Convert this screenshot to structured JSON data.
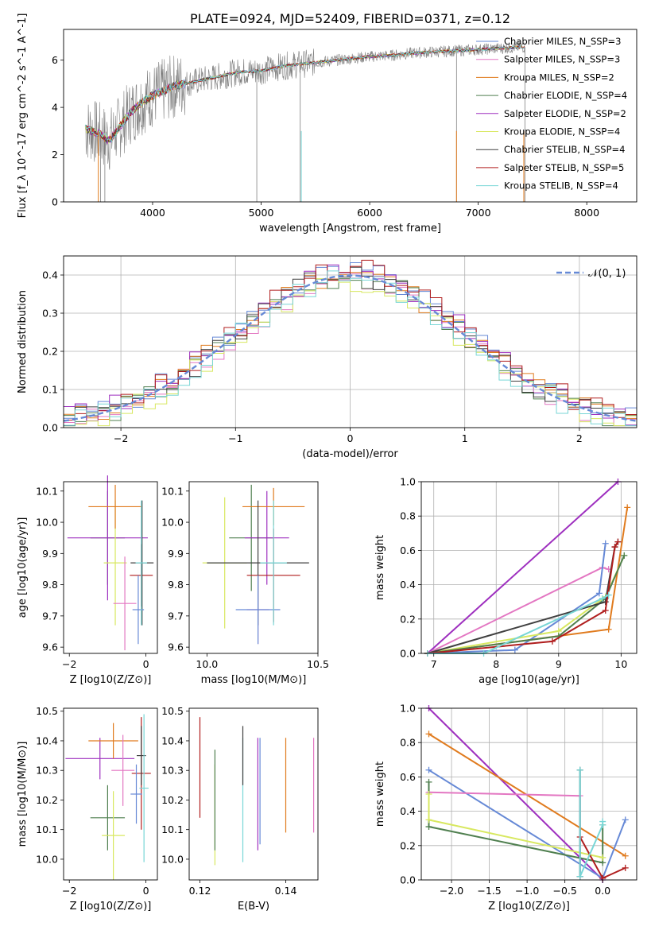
{
  "chart_data": [
    {
      "id": "spectrum",
      "type": "line",
      "title": "PLATE=0924, MJD=52409, FIBERID=0371, z=0.12",
      "xlabel": "wavelength [Angstrom, rest frame]",
      "ylabel": "Flux [f_λ 10^-17 erg cm^-2 s^-1 A^-1]",
      "xlim": [
        3180,
        8460
      ],
      "ylim": [
        0,
        7.3
      ],
      "xticks": [
        4000,
        5000,
        6000,
        7000,
        8000
      ],
      "yticks": [
        0,
        2,
        4,
        6
      ],
      "grid": false,
      "legend_position": "top-right",
      "observed_color": "#808080",
      "continuum_points": {
        "x": [
          3380,
          3500,
          3600,
          3700,
          3800,
          3900,
          4000,
          4200,
          4400,
          4600,
          4800,
          5000,
          5200,
          5400,
          5600,
          5800,
          6000,
          6200,
          6400,
          6600,
          6800,
          7000,
          7200,
          7400
        ],
        "y": [
          3.1,
          2.9,
          2.6,
          3.2,
          3.8,
          4.2,
          4.5,
          4.9,
          5.1,
          5.3,
          5.5,
          5.55,
          5.75,
          5.85,
          5.95,
          6.05,
          6.15,
          6.2,
          6.3,
          6.35,
          6.4,
          6.45,
          6.5,
          6.55
        ]
      },
      "legend": [
        {
          "label": "Chabrier MILES, N_SSP=3",
          "color": "#6689d6"
        },
        {
          "label": "Salpeter MILES, N_SSP=3",
          "color": "#e377c2"
        },
        {
          "label": "Kroupa MILES, N_SSP=2",
          "color": "#e07b1e"
        },
        {
          "label": "Chabrier ELODIE, N_SSP=4",
          "color": "#4f7f4f"
        },
        {
          "label": "Salpeter ELODIE, N_SSP=2",
          "color": "#9e2fbf"
        },
        {
          "label": "Kroupa ELODIE, N_SSP=4",
          "color": "#d8e860"
        },
        {
          "label": "Chabrier STELIB, N_SSP=4",
          "color": "#404040"
        },
        {
          "label": "Salpeter STELIB, N_SSP=5",
          "color": "#b01e1e"
        },
        {
          "label": "Kroupa STELIB, N_SSP=4",
          "color": "#78d6d6"
        }
      ]
    },
    {
      "id": "residuals",
      "type": "histogram",
      "xlabel": "(data-model)/error",
      "ylabel": "Normed distribution",
      "xlim": [
        -2.5,
        2.5
      ],
      "ylim": [
        0,
        0.45
      ],
      "xticks": [
        -2,
        -1,
        0,
        1,
        2
      ],
      "yticks": [
        0.0,
        0.1,
        0.2,
        0.3,
        0.4
      ],
      "grid": true,
      "legend": [
        {
          "label": "𝒩(0, 1)",
          "color": "#6689d6",
          "style": "dashed"
        }
      ],
      "legend_position": "top-right",
      "bin_edges_start": -2.5,
      "bin_width": 0.1,
      "series": [
        {
          "name": "Chabrier MILES",
          "color": "#6689d6",
          "offset": 0.01
        },
        {
          "name": "Salpeter MILES",
          "color": "#e377c2",
          "offset": -0.008
        },
        {
          "name": "Kroupa MILES",
          "color": "#e07b1e",
          "offset": 0.006
        },
        {
          "name": "Chabrier ELODIE",
          "color": "#4f7f4f",
          "offset": -0.004
        },
        {
          "name": "Salpeter ELODIE",
          "color": "#9e2fbf",
          "offset": 0.012
        },
        {
          "name": "Kroupa ELODIE",
          "color": "#d8e860",
          "offset": -0.012
        },
        {
          "name": "Chabrier STELIB",
          "color": "#404040",
          "offset": 0.002
        },
        {
          "name": "Salpeter STELIB",
          "color": "#b01e1e",
          "offset": 0.015
        },
        {
          "name": "Kroupa STELIB",
          "color": "#78d6d6",
          "offset": -0.006
        }
      ]
    },
    {
      "id": "age-vs-Z",
      "type": "scatter",
      "xlabel": "Z [log10(Z/Z⊙)]",
      "ylabel": "age [log10(age/yr)]",
      "xlim": [
        -2.15,
        0.3
      ],
      "ylim": [
        9.58,
        10.13
      ],
      "xticks": [
        -2,
        0
      ],
      "yticks": [
        9.6,
        9.7,
        9.8,
        9.9,
        10.0,
        10.1
      ],
      "points": [
        {
          "x": -1.0,
          "y": 9.95,
          "xerr": 0.45,
          "yerr": 0.15,
          "color": "#4f7f4f"
        },
        {
          "x": -1.0,
          "y": 9.95,
          "xerr": 1.05,
          "yerr": 0.2,
          "color": "#9e2fbf"
        },
        {
          "x": -0.8,
          "y": 9.87,
          "xerr": 0.3,
          "yerr": 0.2,
          "color": "#d8e860"
        },
        {
          "x": -0.8,
          "y": 10.05,
          "xerr": 0.7,
          "yerr": 0.07,
          "color": "#e07b1e"
        },
        {
          "x": -0.55,
          "y": 9.74,
          "xerr": 0.3,
          "yerr": 0.15,
          "color": "#e377c2"
        },
        {
          "x": -0.12,
          "y": 9.83,
          "xerr": 0.3,
          "yerr": 0.1,
          "color": "#b01e1e"
        },
        {
          "x": -0.1,
          "y": 9.87,
          "xerr": 0.3,
          "yerr": 0.2,
          "color": "#404040"
        },
        {
          "x": -0.2,
          "y": 9.72,
          "xerr": 0.15,
          "yerr": 0.11,
          "color": "#6689d6"
        },
        {
          "x": -0.12,
          "y": 9.87,
          "xerr": 0.15,
          "yerr": 0.2,
          "color": "#78d6d6"
        }
      ]
    },
    {
      "id": "age-vs-mass",
      "type": "scatter",
      "xlabel": "mass [log10(M/M⊙)]",
      "ylabel": "",
      "xlim": [
        9.92,
        10.5
      ],
      "ylim": [
        9.58,
        10.13
      ],
      "xticks": [
        10.0,
        10.5
      ],
      "yticks": [
        9.6,
        9.7,
        9.8,
        9.9,
        10.0,
        10.1
      ],
      "points": [
        {
          "x": 10.2,
          "y": 9.95,
          "xerr": 0.1,
          "yerr": 0.17,
          "color": "#4f7f4f"
        },
        {
          "x": 10.27,
          "y": 9.95,
          "xerr": 0.1,
          "yerr": 0.15,
          "color": "#9e2fbf"
        },
        {
          "x": 10.08,
          "y": 9.87,
          "xerr": 0.1,
          "yerr": 0.21,
          "color": "#d8e860"
        },
        {
          "x": 10.3,
          "y": 10.05,
          "xerr": 0.14,
          "yerr": 0.06,
          "color": "#e07b1e"
        },
        {
          "x": 10.23,
          "y": 9.72,
          "xerr": 0.05,
          "yerr": 0.11,
          "color": "#e377c2"
        },
        {
          "x": 10.3,
          "y": 9.83,
          "xerr": 0.12,
          "yerr": 0.15,
          "color": "#b01e1e"
        },
        {
          "x": 10.23,
          "y": 9.87,
          "xerr": 0.23,
          "yerr": 0.2,
          "color": "#404040"
        },
        {
          "x": 10.23,
          "y": 9.72,
          "xerr": 0.1,
          "yerr": 0.11,
          "color": "#6689d6"
        },
        {
          "x": 10.3,
          "y": 9.87,
          "xerr": 0.06,
          "yerr": 0.2,
          "color": "#78d6d6"
        }
      ]
    },
    {
      "id": "weight-vs-age",
      "type": "line",
      "xlabel": "age [log10(age/yr)]",
      "ylabel": "mass weight",
      "xlim": [
        6.8,
        10.25
      ],
      "ylim": [
        0,
        1
      ],
      "xticks": [
        7,
        8,
        9,
        10
      ],
      "yticks": [
        0.0,
        0.2,
        0.4,
        0.6,
        0.8,
        1.0
      ],
      "grid": true,
      "series": [
        {
          "color": "#9e2fbf",
          "x": [
            6.9,
            9.95
          ],
          "y": [
            0.0,
            1.0
          ]
        },
        {
          "color": "#e07b1e",
          "x": [
            6.9,
            9.8,
            10.1
          ],
          "y": [
            0.0,
            0.14,
            0.85
          ]
        },
        {
          "color": "#e377c2",
          "x": [
            6.9,
            9.7,
            9.8
          ],
          "y": [
            0.0,
            0.5,
            0.49
          ]
        },
        {
          "color": "#6689d6",
          "x": [
            6.9,
            8.3,
            9.65,
            9.75
          ],
          "y": [
            0.0,
            0.02,
            0.35,
            0.64
          ]
        },
        {
          "color": "#d8e860",
          "x": [
            6.9,
            9.0,
            9.75,
            10.05
          ],
          "y": [
            0.0,
            0.13,
            0.33,
            0.57
          ]
        },
        {
          "color": "#4f7f4f",
          "x": [
            6.9,
            9.0,
            9.75,
            10.05
          ],
          "y": [
            0.0,
            0.1,
            0.32,
            0.57
          ]
        },
        {
          "color": "#404040",
          "x": [
            6.9,
            9.75,
            9.9,
            9.95
          ],
          "y": [
            0.0,
            0.3,
            0.62,
            0.65
          ]
        },
        {
          "color": "#b01e1e",
          "x": [
            6.9,
            8.9,
            9.75,
            9.9,
            9.95
          ],
          "y": [
            0.0,
            0.07,
            0.25,
            0.62,
            0.65
          ]
        },
        {
          "color": "#78d6d6",
          "x": [
            6.9,
            7.8,
            9.7,
            9.8
          ],
          "y": [
            0.0,
            0.0,
            0.32,
            0.34
          ]
        }
      ]
    },
    {
      "id": "mass-vs-Z",
      "type": "scatter",
      "xlabel": "Z [log10(Z/Z⊙)]",
      "ylabel": "mass [log10(M/M⊙)]",
      "xlim": [
        -2.15,
        0.3
      ],
      "ylim": [
        9.93,
        10.51
      ],
      "xticks": [
        -2,
        0
      ],
      "yticks": [
        10.0,
        10.1,
        10.2,
        10.3,
        10.4,
        10.5
      ],
      "points": [
        {
          "x": -1.0,
          "y": 10.14,
          "xerr": 0.45,
          "yerr": 0.11,
          "color": "#4f7f4f"
        },
        {
          "x": -1.2,
          "y": 10.34,
          "xerr": 0.9,
          "yerr": 0.07,
          "color": "#9e2fbf"
        },
        {
          "x": -0.85,
          "y": 10.08,
          "xerr": 0.3,
          "yerr": 0.15,
          "color": "#d8e860"
        },
        {
          "x": -0.85,
          "y": 10.4,
          "xerr": 0.65,
          "yerr": 0.06,
          "color": "#e07b1e"
        },
        {
          "x": -0.6,
          "y": 10.3,
          "xerr": 0.3,
          "yerr": 0.12,
          "color": "#e377c2"
        },
        {
          "x": -0.12,
          "y": 10.29,
          "xerr": 0.25,
          "yerr": 0.19,
          "color": "#b01e1e"
        },
        {
          "x": -0.12,
          "y": 10.35,
          "xerr": 0.12,
          "yerr": 0.1,
          "color": "#404040"
        },
        {
          "x": -0.25,
          "y": 10.22,
          "xerr": 0.15,
          "yerr": 0.1,
          "color": "#6689d6"
        },
        {
          "x": -0.05,
          "y": 10.24,
          "xerr": 0.12,
          "yerr": 0.25,
          "color": "#78d6d6"
        }
      ]
    },
    {
      "id": "mass-vs-EBV",
      "type": "scatter",
      "xlabel": "E(B-V)",
      "ylabel": "",
      "xlim": [
        0.1175,
        0.1475
      ],
      "ylim": [
        9.93,
        10.51
      ],
      "xticks": [
        0.12,
        0.14
      ],
      "yticks": [
        10.0,
        10.1,
        10.2,
        10.3,
        10.4,
        10.5
      ],
      "points": [
        {
          "x": 0.12,
          "y": 10.31,
          "yerr": 0.17,
          "color": "#b01e1e"
        },
        {
          "x": 0.1235,
          "y": 10.15,
          "yerr": 0.17,
          "color": "#d8e860"
        },
        {
          "x": 0.1235,
          "y": 10.2,
          "yerr": 0.17,
          "color": "#4f7f4f"
        },
        {
          "x": 0.13,
          "y": 10.2,
          "yerr": 0.21,
          "color": "#78d6d6"
        },
        {
          "x": 0.13,
          "y": 10.35,
          "yerr": 0.1,
          "color": "#404040"
        },
        {
          "x": 0.1335,
          "y": 10.22,
          "yerr": 0.19,
          "color": "#9e2fbf"
        },
        {
          "x": 0.134,
          "y": 10.23,
          "yerr": 0.18,
          "color": "#6689d6"
        },
        {
          "x": 0.14,
          "y": 10.25,
          "yerr": 0.16,
          "color": "#e07b1e"
        },
        {
          "x": 0.1465,
          "y": 10.25,
          "yerr": 0.16,
          "color": "#e377c2"
        }
      ]
    },
    {
      "id": "weight-vs-Z",
      "type": "line",
      "xlabel": "Z [log10(Z/Z⊙)]",
      "ylabel": "mass weight",
      "xlim": [
        -2.4,
        0.45
      ],
      "ylim": [
        0,
        1
      ],
      "xticks": [
        -2.0,
        -1.5,
        -1.0,
        -0.5,
        0.0
      ],
      "yticks": [
        0.0,
        0.2,
        0.4,
        0.6,
        0.8,
        1.0
      ],
      "grid": true,
      "series": [
        {
          "color": "#9e2fbf",
          "x": [
            -2.3,
            0.0
          ],
          "y": [
            1.0,
            0.0
          ]
        },
        {
          "color": "#e07b1e",
          "x": [
            -2.3,
            0.3
          ],
          "y": [
            0.85,
            0.14
          ]
        },
        {
          "color": "#6689d6",
          "x": [
            -2.3,
            0.0,
            0.3
          ],
          "y": [
            0.64,
            0.01,
            0.35
          ]
        },
        {
          "color": "#e377c2",
          "x": [
            -2.3,
            -0.3,
            -0.3
          ],
          "y": [
            0.51,
            0.49,
            0.02
          ]
        },
        {
          "color": "#4f7f4f",
          "x": [
            -2.3,
            -2.3,
            0.0,
            0.0
          ],
          "y": [
            0.57,
            0.31,
            0.1,
            0.32
          ]
        },
        {
          "color": "#d8e860",
          "x": [
            -2.3,
            -2.3,
            0.0
          ],
          "y": [
            0.5,
            0.35,
            0.13
          ]
        },
        {
          "color": "#404040",
          "x": [
            -0.3,
            -0.3
          ],
          "y": [
            0.64,
            0.02
          ]
        },
        {
          "color": "#b01e1e",
          "x": [
            -0.3,
            0.0,
            0.3
          ],
          "y": [
            0.25,
            0.01,
            0.07
          ]
        },
        {
          "color": "#78d6d6",
          "x": [
            -0.3,
            -0.3,
            0.0,
            0.0
          ],
          "y": [
            0.64,
            0.02,
            0.32,
            0.34
          ]
        }
      ]
    }
  ]
}
